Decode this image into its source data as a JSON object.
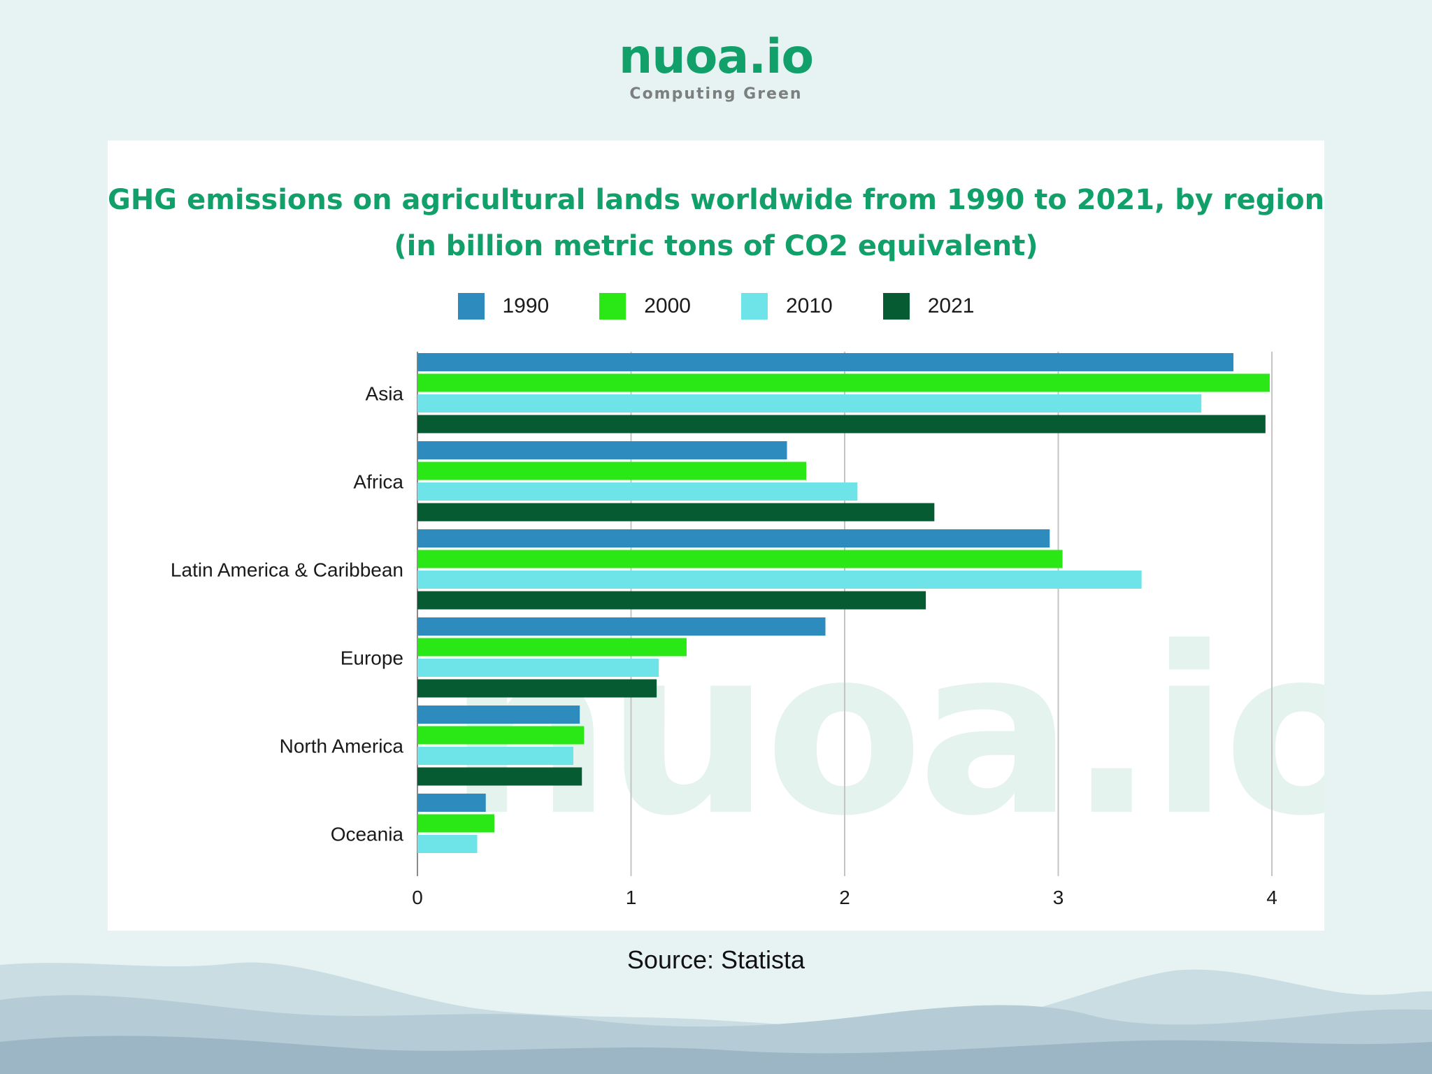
{
  "brand": {
    "name": "nuoa.io",
    "tagline": "Computing  Green",
    "watermark": "nuoa.io"
  },
  "colors": {
    "background": "#e7f3f2",
    "accent": "#12a06a",
    "watermark": "#e4f3ee",
    "grid": "#c4c4c4"
  },
  "chart_data": {
    "type": "bar",
    "orientation": "horizontal",
    "title": "GHG emissions on agricultural lands worldwide from 1990 to 2021, by region",
    "subtitle": "(in billion metric tons of CO2 equivalent)",
    "categories": [
      "Asia",
      "Africa",
      "Latin America & Caribbean",
      "Europe",
      "North America",
      "Oceania"
    ],
    "series": [
      {
        "name": "1990",
        "color": "#2e8bbd",
        "values": [
          3.82,
          1.73,
          2.96,
          1.91,
          0.76,
          0.32
        ]
      },
      {
        "name": "2000",
        "color": "#2ae815",
        "values": [
          3.99,
          1.82,
          3.02,
          1.26,
          0.78,
          0.36
        ]
      },
      {
        "name": "2010",
        "color": "#6ee4e8",
        "values": [
          3.67,
          2.06,
          3.39,
          1.13,
          0.73,
          0.28
        ]
      },
      {
        "name": "2021",
        "color": "#065b33",
        "values": [
          3.97,
          2.42,
          2.38,
          1.12,
          0.77,
          0
        ]
      }
    ],
    "xlim": [
      0,
      4
    ],
    "xticks": [
      "0",
      "1",
      "2",
      "3",
      "4"
    ],
    "xlabel": "",
    "ylabel": "",
    "grid": true,
    "legend_position": "top"
  },
  "source": "Source: Statista"
}
